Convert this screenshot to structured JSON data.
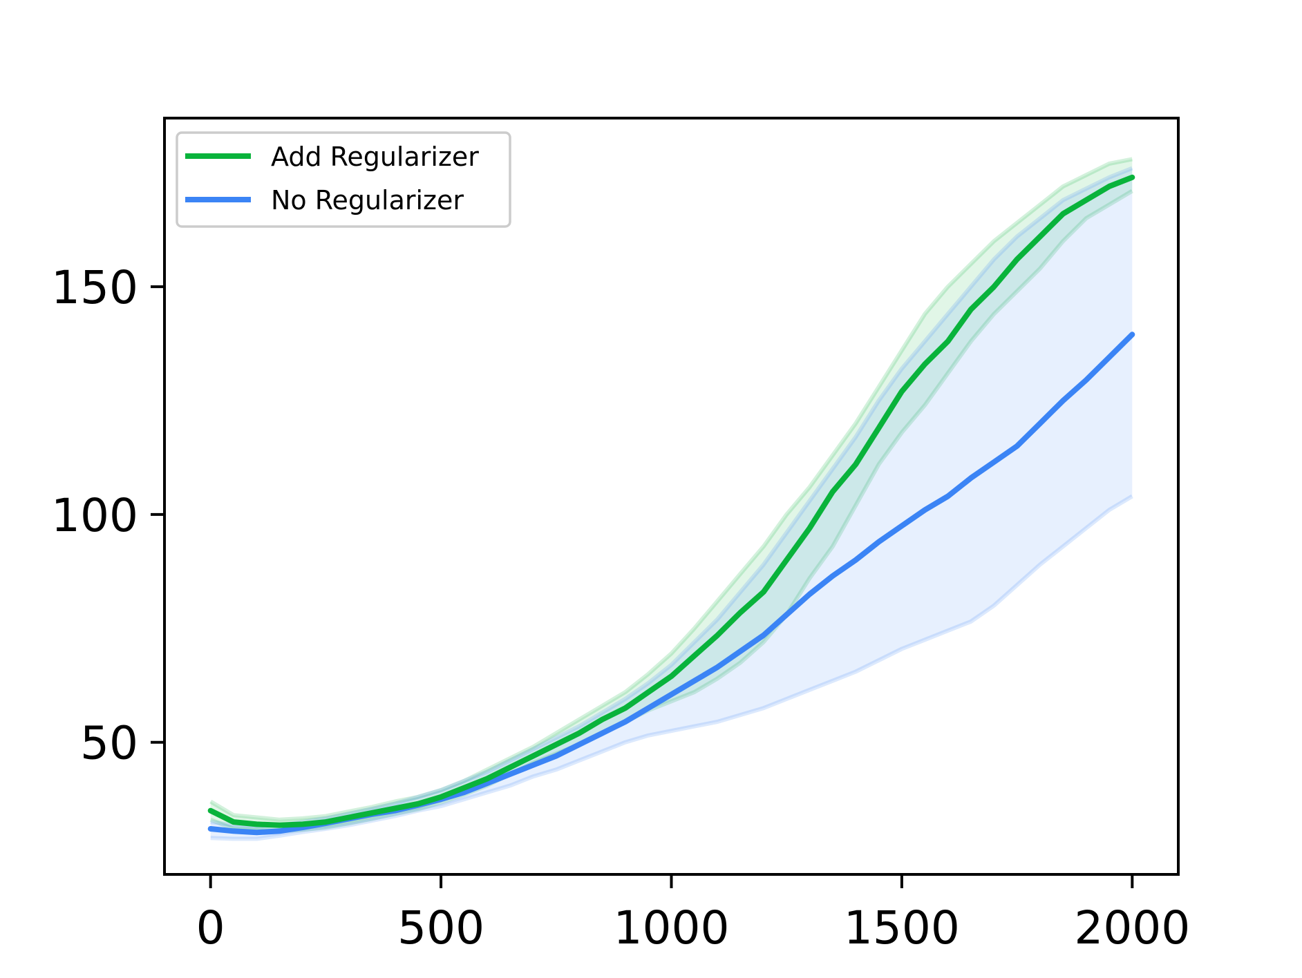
{
  "chart_data": {
    "type": "line",
    "title": "",
    "xlabel": "",
    "ylabel": "",
    "xlim": [
      -100,
      2100
    ],
    "ylim": [
      21,
      187
    ],
    "xticks": [
      0,
      500,
      1000,
      1500,
      2000
    ],
    "yticks": [
      50,
      100,
      150
    ],
    "x_tick_labels": [
      "0",
      "500",
      "1000",
      "1500",
      "2000"
    ],
    "y_tick_labels": [
      "50",
      "100",
      "150"
    ],
    "grid": false,
    "legend_position": "top-left",
    "series": [
      {
        "name": "Add Regularizer",
        "color": "#09b33b",
        "x": [
          0,
          50,
          100,
          150,
          200,
          250,
          300,
          350,
          400,
          450,
          500,
          550,
          600,
          650,
          700,
          750,
          800,
          850,
          900,
          950,
          1000,
          1050,
          1100,
          1150,
          1200,
          1250,
          1300,
          1350,
          1400,
          1450,
          1500,
          1550,
          1600,
          1650,
          1700,
          1750,
          1800,
          1850,
          1900,
          1950,
          2000
        ],
        "mean": [
          35,
          32.5,
          32,
          31.8,
          32,
          32.5,
          33.5,
          34.5,
          35.5,
          36.5,
          38,
          40,
          42,
          44.5,
          47,
          49.5,
          52,
          55,
          57.5,
          61,
          64.5,
          69,
          73.5,
          78.5,
          83,
          90,
          97,
          105,
          111,
          119,
          127,
          133,
          138,
          145,
          150,
          156,
          161,
          166,
          169,
          172,
          174
        ],
        "upper": [
          37,
          34,
          33.5,
          33,
          33.3,
          33.8,
          34.8,
          35.8,
          37,
          38,
          39.5,
          41.5,
          44,
          46.5,
          49,
          52,
          55,
          58,
          61,
          65,
          69.5,
          75,
          81,
          87,
          93,
          100,
          106,
          113,
          120,
          128,
          136,
          144,
          150,
          155,
          160,
          164,
          168,
          172,
          174.5,
          177,
          178
        ],
        "lower": [
          33,
          31,
          30.8,
          30.5,
          30.8,
          31.3,
          32.2,
          33.2,
          34.3,
          35.3,
          36.8,
          38.5,
          40.5,
          43,
          45.5,
          47.5,
          49.5,
          52,
          54.5,
          57,
          59,
          61,
          64,
          67.5,
          72,
          78,
          86,
          93,
          102,
          111,
          118,
          124,
          131,
          138,
          144,
          149,
          154,
          160,
          165,
          168,
          171
        ]
      },
      {
        "name": "No Regularizer",
        "color": "#3b84f5",
        "x": [
          0,
          50,
          100,
          150,
          200,
          250,
          300,
          350,
          400,
          450,
          500,
          550,
          600,
          650,
          700,
          750,
          800,
          850,
          900,
          950,
          1000,
          1050,
          1100,
          1150,
          1200,
          1250,
          1300,
          1350,
          1400,
          1450,
          1500,
          1550,
          1600,
          1650,
          1700,
          1750,
          1800,
          1850,
          1900,
          1950,
          2000
        ],
        "mean": [
          31,
          30.5,
          30.2,
          30.5,
          31.3,
          32.2,
          33.2,
          34.2,
          35,
          36.2,
          37.5,
          39,
          41,
          43,
          45,
          47,
          49.5,
          52,
          54.5,
          57.5,
          60.5,
          63.5,
          66.5,
          70,
          73.5,
          78,
          82.5,
          86.5,
          90,
          94,
          97.5,
          101,
          104,
          108,
          111.5,
          115,
          120,
          125,
          129.5,
          134.5,
          139.5
        ],
        "upper": [
          32.5,
          31.8,
          31.5,
          31.8,
          32.5,
          33.3,
          34.3,
          35.4,
          36.5,
          38,
          39.5,
          41.5,
          43.5,
          46,
          48.5,
          51,
          53.5,
          56.5,
          59.5,
          63,
          67,
          72,
          77,
          83,
          89,
          96,
          103,
          110,
          117,
          125,
          132,
          138,
          144,
          150,
          156,
          161,
          165,
          169,
          171.5,
          174,
          176
        ],
        "lower": [
          29,
          28.8,
          28.8,
          29.5,
          30.3,
          31,
          31.8,
          32.8,
          33.8,
          35,
          36,
          37.5,
          39,
          40.5,
          42.5,
          44,
          46,
          48,
          50,
          51.5,
          52.5,
          53.5,
          54.5,
          56,
          57.5,
          59.5,
          61.5,
          63.5,
          65.5,
          68,
          70.5,
          72.5,
          74.5,
          76.5,
          80,
          84.5,
          89,
          93,
          97,
          101,
          104
        ]
      }
    ]
  }
}
